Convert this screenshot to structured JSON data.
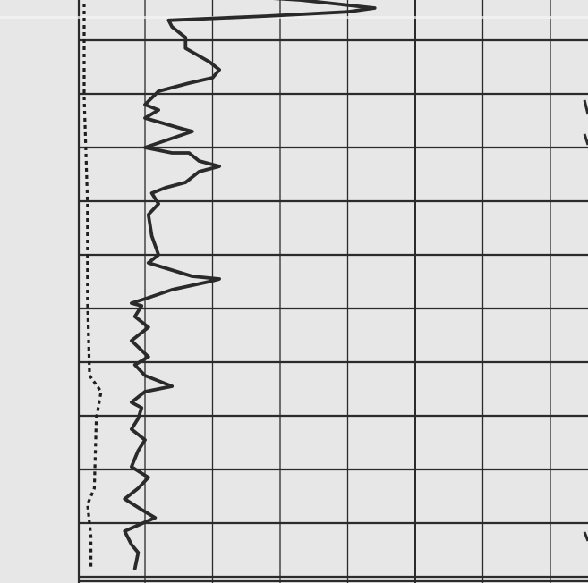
{
  "chart_data": {
    "type": "line",
    "title": "",
    "xlabel": "",
    "ylabel": "",
    "grid": true,
    "legend": "none",
    "xlim": [
      0,
      8
    ],
    "ylim": [
      0,
      11
    ],
    "series": [
      {
        "style": "solid",
        "color": "#2a2a2a",
        "points": [
          [
            0.3,
            0.0
          ],
          [
            0.8,
            0.13
          ],
          [
            1.4,
            0.13
          ],
          [
            2.3,
            0.2
          ],
          [
            3.4,
            0.35
          ],
          [
            3.0,
            0.42
          ],
          [
            1.8,
            0.5
          ],
          [
            0.35,
            0.58
          ],
          [
            0.4,
            0.7
          ],
          [
            0.6,
            0.9
          ],
          [
            0.6,
            1.1
          ],
          [
            0.95,
            1.35
          ],
          [
            1.1,
            1.5
          ],
          [
            1.0,
            1.65
          ],
          [
            0.65,
            1.75
          ],
          [
            0.2,
            1.9
          ],
          [
            0.0,
            2.15
          ],
          [
            0.2,
            2.25
          ],
          [
            0.0,
            2.4
          ],
          [
            0.55,
            2.6
          ],
          [
            0.7,
            2.65
          ],
          [
            0.0,
            2.95
          ],
          [
            0.4,
            3.05
          ],
          [
            0.65,
            3.05
          ],
          [
            0.8,
            3.2
          ],
          [
            1.1,
            3.3
          ],
          [
            0.8,
            3.4
          ],
          [
            0.6,
            3.6
          ],
          [
            0.3,
            3.7
          ],
          [
            0.1,
            3.8
          ],
          [
            0.2,
            4.0
          ],
          [
            0.05,
            4.2
          ],
          [
            0.1,
            4.6
          ],
          [
            0.2,
            4.95
          ],
          [
            0.05,
            5.1
          ],
          [
            0.7,
            5.35
          ],
          [
            1.1,
            5.4
          ],
          [
            0.95,
            5.45
          ],
          [
            0.4,
            5.6
          ],
          [
            0.05,
            5.75
          ],
          [
            -0.2,
            5.85
          ],
          [
            -0.05,
            5.9
          ],
          [
            -0.15,
            6.1
          ],
          [
            0.05,
            6.3
          ],
          [
            -0.2,
            6.55
          ],
          [
            0.05,
            6.85
          ],
          [
            -0.15,
            7.0
          ],
          [
            0.0,
            7.2
          ],
          [
            0.4,
            7.4
          ],
          [
            0.0,
            7.5
          ],
          [
            -0.2,
            7.7
          ],
          [
            -0.05,
            7.8
          ],
          [
            -0.1,
            8.0
          ],
          [
            -0.2,
            8.2
          ],
          [
            0.0,
            8.4
          ],
          [
            -0.1,
            8.6
          ],
          [
            -0.2,
            8.9
          ],
          [
            0.05,
            9.1
          ],
          [
            -0.1,
            9.3
          ],
          [
            -0.3,
            9.5
          ],
          [
            -0.05,
            9.7
          ],
          [
            0.15,
            9.85
          ],
          [
            -0.3,
            10.1
          ],
          [
            -0.2,
            10.35
          ],
          [
            -0.1,
            10.5
          ],
          [
            -0.15,
            10.8
          ]
        ]
      },
      {
        "style": "dotted",
        "color": "#1e1e1e",
        "points": [
          [
            -0.9,
            0.0
          ],
          [
            -0.9,
            2.0
          ],
          [
            -0.85,
            4.0
          ],
          [
            -0.85,
            5.8
          ],
          [
            -0.82,
            7.2
          ],
          [
            -0.65,
            7.5
          ],
          [
            -0.72,
            8.0
          ],
          [
            -0.75,
            9.3
          ],
          [
            -0.85,
            9.6
          ],
          [
            -0.8,
            10.2
          ],
          [
            -0.8,
            10.8
          ]
        ]
      }
    ]
  },
  "colors": {
    "background": "#e7e7e7",
    "grid": "#2b2b2b",
    "track_edge": "#2b2b2b"
  },
  "icons": [
    "tick-marks-right-edge"
  ]
}
